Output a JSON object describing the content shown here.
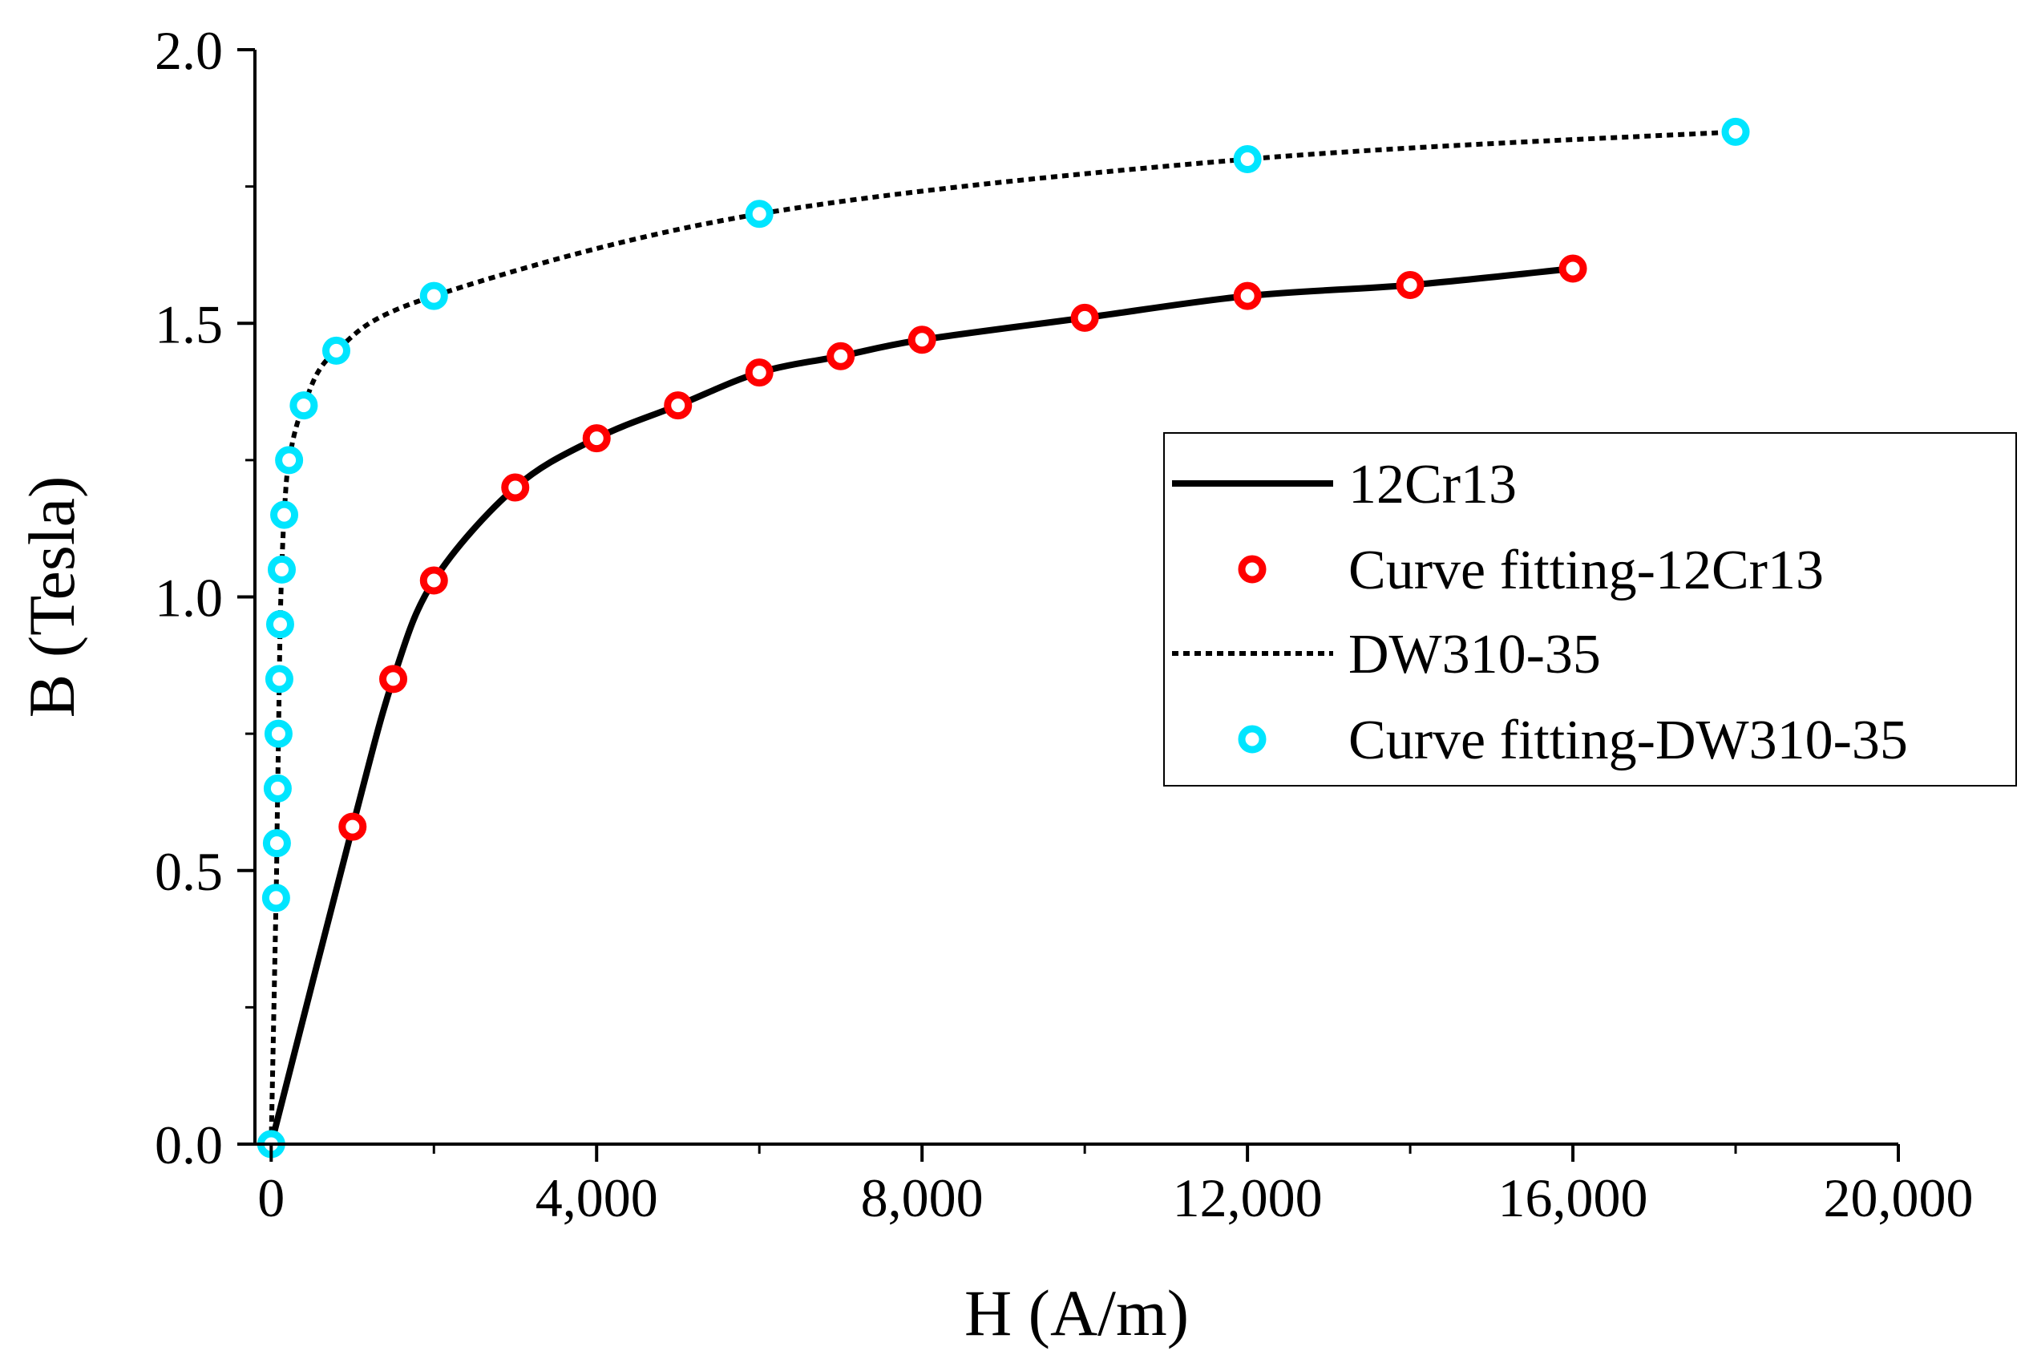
{
  "chart_data": {
    "type": "line",
    "title": "",
    "xlabel": "H (A/m)",
    "ylabel": "B (Tesla)",
    "xlim": [
      -200,
      20000
    ],
    "ylim": [
      0.0,
      2.0
    ],
    "xticks": [
      0,
      4000,
      8000,
      12000,
      16000,
      20000
    ],
    "xtick_labels": [
      "0",
      "4,000",
      "8,000",
      "12,000",
      "16,000",
      "20,000"
    ],
    "yticks": [
      0.0,
      0.5,
      1.0,
      1.5,
      2.0
    ],
    "ytick_labels": [
      "0.0",
      "0.5",
      "1.0",
      "1.5",
      "2.0"
    ],
    "grid": false,
    "legend_position": "right",
    "series": [
      {
        "name": "12Cr13",
        "kind": "line",
        "style": "solid",
        "color": "#000000",
        "x": [
          0,
          1000,
          1500,
          2000,
          3000,
          4000,
          5000,
          6000,
          7000,
          8000,
          10000,
          12000,
          14000,
          16000
        ],
        "y": [
          0,
          0.58,
          0.85,
          1.03,
          1.2,
          1.29,
          1.35,
          1.41,
          1.44,
          1.47,
          1.51,
          1.55,
          1.57,
          1.6
        ]
      },
      {
        "name": "Curve fitting-12Cr13",
        "kind": "scatter",
        "color": "#ff0000",
        "x": [
          1000,
          1500,
          2000,
          3000,
          4000,
          5000,
          6000,
          7000,
          8000,
          10000,
          12000,
          14000,
          16000
        ],
        "y": [
          0.58,
          0.85,
          1.03,
          1.2,
          1.29,
          1.35,
          1.41,
          1.44,
          1.47,
          1.51,
          1.55,
          1.57,
          1.6
        ]
      },
      {
        "name": "DW310-35",
        "kind": "line",
        "style": "dotted",
        "color": "#000000",
        "x": [
          0,
          60,
          70,
          80,
          90,
          100,
          110,
          130,
          160,
          220,
          400,
          800,
          2000,
          6000,
          12000,
          18000
        ],
        "y": [
          0,
          0.45,
          0.55,
          0.65,
          0.75,
          0.85,
          0.95,
          1.05,
          1.15,
          1.25,
          1.35,
          1.45,
          1.55,
          1.7,
          1.8,
          1.85
        ]
      },
      {
        "name": "Curve fitting-DW310-35",
        "kind": "scatter",
        "color": "#00e5ff",
        "x": [
          0,
          60,
          70,
          80,
          90,
          100,
          110,
          130,
          160,
          220,
          400,
          800,
          2000,
          6000,
          12000,
          18000
        ],
        "y": [
          0,
          0.45,
          0.55,
          0.65,
          0.75,
          0.85,
          0.95,
          1.05,
          1.15,
          1.25,
          1.35,
          1.45,
          1.55,
          1.7,
          1.8,
          1.85
        ]
      }
    ]
  }
}
